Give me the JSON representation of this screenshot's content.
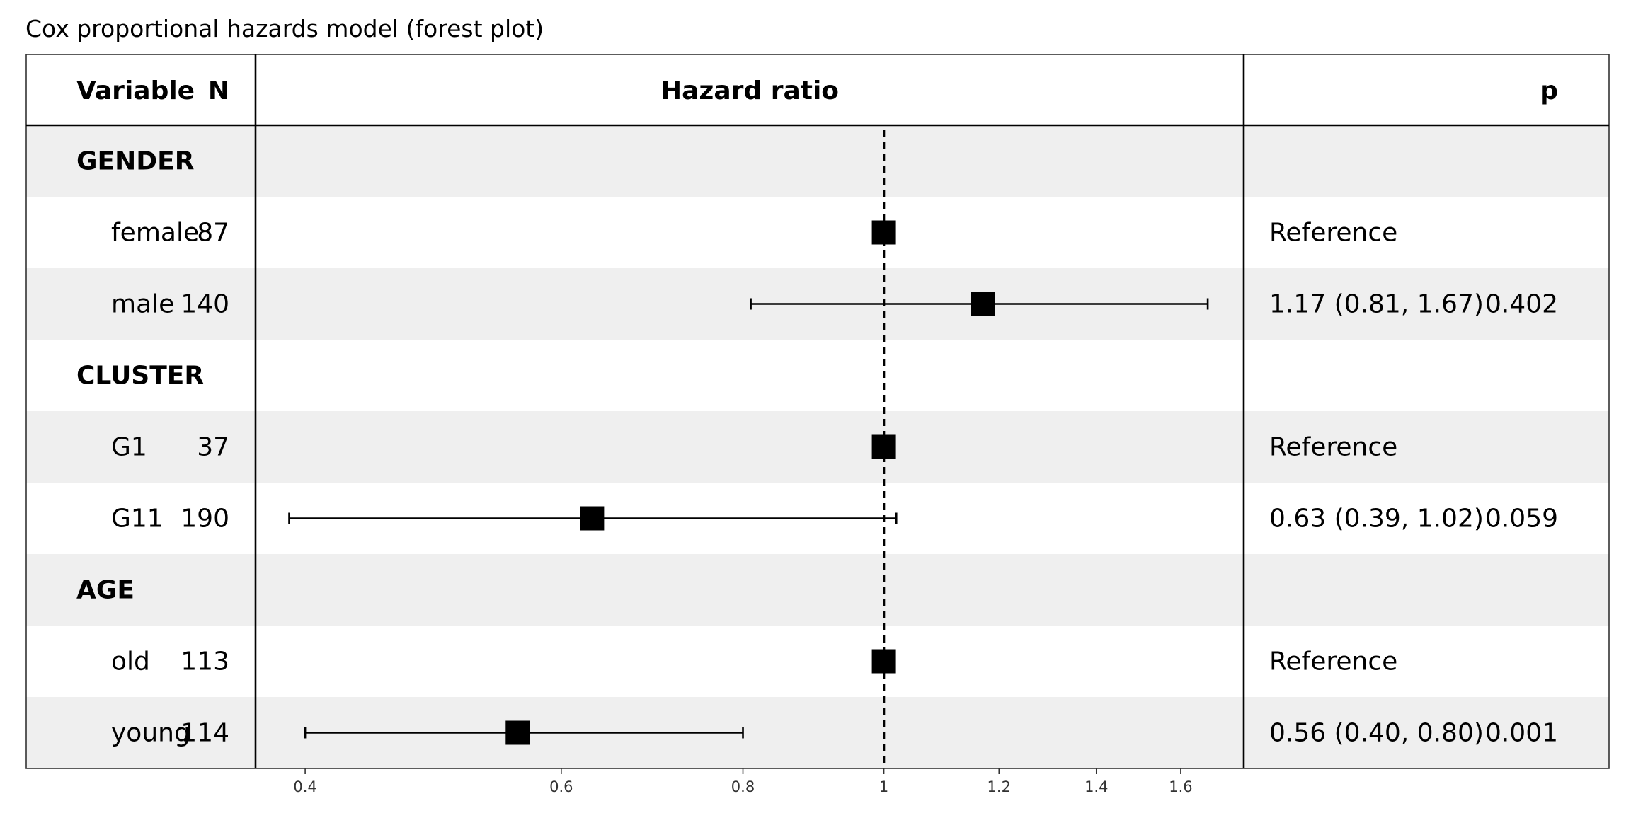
{
  "title": "Cox proportional hazards model (forest plot)",
  "chart_data": {
    "type": "forest",
    "title": "Cox proportional hazards model (forest plot)",
    "columns": {
      "variable": "Variable",
      "n": "N",
      "estimate": "Hazard ratio",
      "p": "p"
    },
    "x_axis": {
      "scale": "log",
      "range": [
        0.385,
        1.7
      ],
      "ticks": [
        0.4,
        0.6,
        0.8,
        1,
        1.2,
        1.4,
        1.6
      ],
      "tick_labels": [
        "0.4",
        "0.6",
        "0.8",
        "1",
        "1.2",
        "1.4",
        "1.6"
      ],
      "reference_line": 1
    },
    "rows": [
      {
        "kind": "group",
        "label": "GENDER",
        "shaded": true
      },
      {
        "kind": "level",
        "label": "female",
        "n": "87",
        "hr": 1.0,
        "reference": true,
        "estimate_text": "Reference",
        "p": "",
        "shaded": false
      },
      {
        "kind": "level",
        "label": "male",
        "n": "140",
        "hr": 1.17,
        "lower": 0.81,
        "upper": 1.67,
        "estimate_text": "1.17 (0.81, 1.67)",
        "p": "0.402",
        "shaded": true
      },
      {
        "kind": "group",
        "label": "CLUSTER",
        "shaded": false
      },
      {
        "kind": "level",
        "label": "G1",
        "n": "37",
        "hr": 1.0,
        "reference": true,
        "estimate_text": "Reference",
        "p": "",
        "shaded": true
      },
      {
        "kind": "level",
        "label": "G11",
        "n": "190",
        "hr": 0.63,
        "lower": 0.39,
        "upper": 1.02,
        "estimate_text": "0.63 (0.39, 1.02)",
        "p": "0.059",
        "shaded": false
      },
      {
        "kind": "group",
        "label": "AGE",
        "shaded": true
      },
      {
        "kind": "level",
        "label": "old",
        "n": "113",
        "hr": 1.0,
        "reference": true,
        "estimate_text": "Reference",
        "p": "",
        "shaded": false
      },
      {
        "kind": "level",
        "label": "young",
        "n": "114",
        "hr": 0.56,
        "lower": 0.4,
        "upper": 0.8,
        "estimate_text": "0.56 (0.40, 0.80)",
        "p": "0.001",
        "shaded": true
      }
    ],
    "colors": {
      "row_shade": "#efefef",
      "marker": "#000000",
      "lines": "#000000",
      "tick_text": "#333333"
    }
  }
}
